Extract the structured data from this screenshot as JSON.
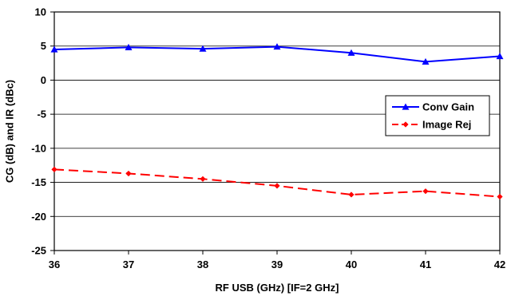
{
  "chart_data": {
    "type": "line",
    "title": "",
    "xlabel": "RF USB (GHz) [IF=2 GHz]",
    "ylabel": "CG (dB) and IR (dBc)",
    "x": [
      36,
      37,
      38,
      39,
      40,
      41,
      42
    ],
    "xlim": [
      36,
      42
    ],
    "ylim": [
      -25,
      10
    ],
    "x_ticks": [
      "36",
      "37",
      "38",
      "39",
      "40",
      "41",
      "42"
    ],
    "y_ticks": [
      "10",
      "5",
      "0",
      "-5",
      "-10",
      "-15",
      "-20",
      "-25"
    ],
    "grid": "horizontal",
    "legend_position": "right",
    "series": [
      {
        "name": "Conv Gain",
        "values": [
          4.5,
          4.8,
          4.6,
          4.9,
          4.0,
          2.7,
          3.5
        ],
        "color": "#0000ff",
        "marker": "triangle",
        "line_style": "solid"
      },
      {
        "name": "Image Rej",
        "values": [
          -13.1,
          -13.7,
          -14.5,
          -15.5,
          -16.8,
          -16.3,
          -17.1
        ],
        "color": "#ff0000",
        "marker": "diamond",
        "line_style": "dashed"
      }
    ]
  }
}
